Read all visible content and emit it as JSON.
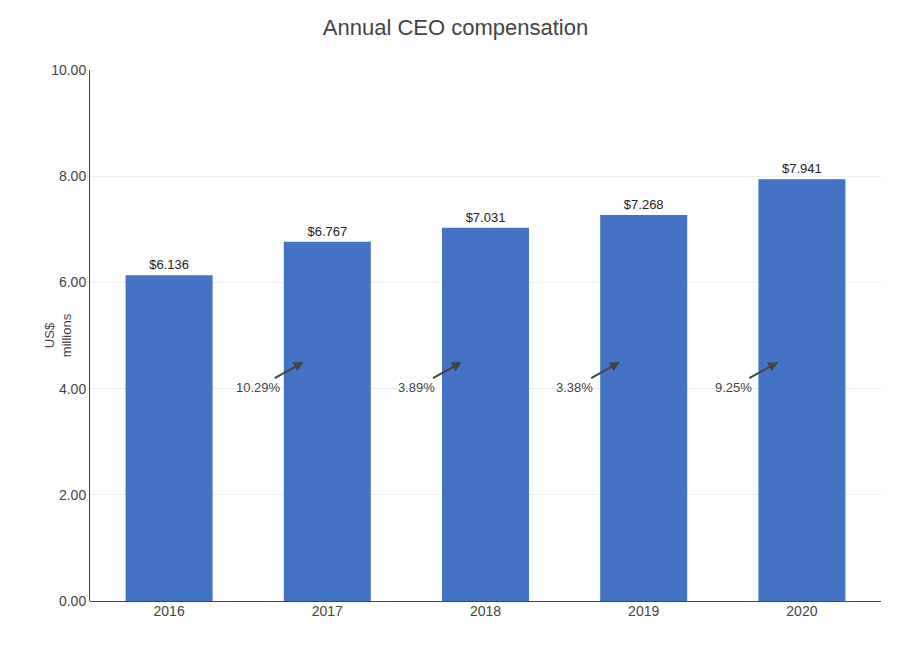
{
  "chart_data": {
    "type": "bar",
    "title": "Annual CEO compensation",
    "ylabel": "US$\nmillions",
    "categories": [
      "2016",
      "2017",
      "2018",
      "2019",
      "2020"
    ],
    "values": [
      6.136,
      6.767,
      7.031,
      7.268,
      7.941
    ],
    "value_labels": [
      "$6.136",
      "$6.767",
      "$7.031",
      "$7.268",
      "$7.941"
    ],
    "data_labels": true,
    "color": "#4472C4",
    "ylim": [
      0,
      10.0
    ],
    "yticks": [
      {
        "value": 0.0,
        "label": "0.00"
      },
      {
        "value": 2.0,
        "label": "2.00"
      },
      {
        "value": 4.0,
        "label": "4.00"
      },
      {
        "value": 6.0,
        "label": "6.00"
      },
      {
        "value": 8.0,
        "label": "8.00"
      },
      {
        "value": 10.0,
        "label": "10.00"
      }
    ],
    "grid": true,
    "annotations": [
      "10.29%",
      "3.89%",
      "3.38%",
      "9.25%"
    ]
  }
}
